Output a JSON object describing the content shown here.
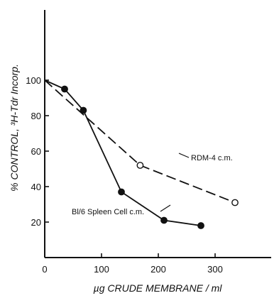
{
  "chart_data": {
    "type": "line",
    "title": "",
    "xlabel": "µg CRUDE MEMBRANE / ml",
    "ylabel": "% CONTROL, ³H-Tdr Incorp.",
    "xlim": [
      0,
      370
    ],
    "ylim": [
      0,
      115
    ],
    "x_ticks": [
      0,
      100,
      200,
      300
    ],
    "y_ticks": [
      20,
      40,
      60,
      80,
      100
    ],
    "x_tick_labels": [
      "0",
      "100",
      "200",
      "300"
    ],
    "y_tick_labels": [
      "20",
      "40",
      "60",
      "80",
      "100"
    ],
    "grid": false,
    "series": [
      {
        "name": "Bl/6 Spleen Cell c.m.",
        "style": "solid",
        "marker": "filled-circle",
        "x": [
          0,
          35,
          68,
          135,
          210,
          275
        ],
        "y": [
          100,
          95,
          83,
          37,
          21,
          18
        ]
      },
      {
        "name": "RDM-4 c.m.",
        "style": "dashed",
        "marker": "open-circle",
        "x": [
          0,
          168,
          335
        ],
        "y": [
          100,
          52,
          31
        ]
      }
    ]
  }
}
